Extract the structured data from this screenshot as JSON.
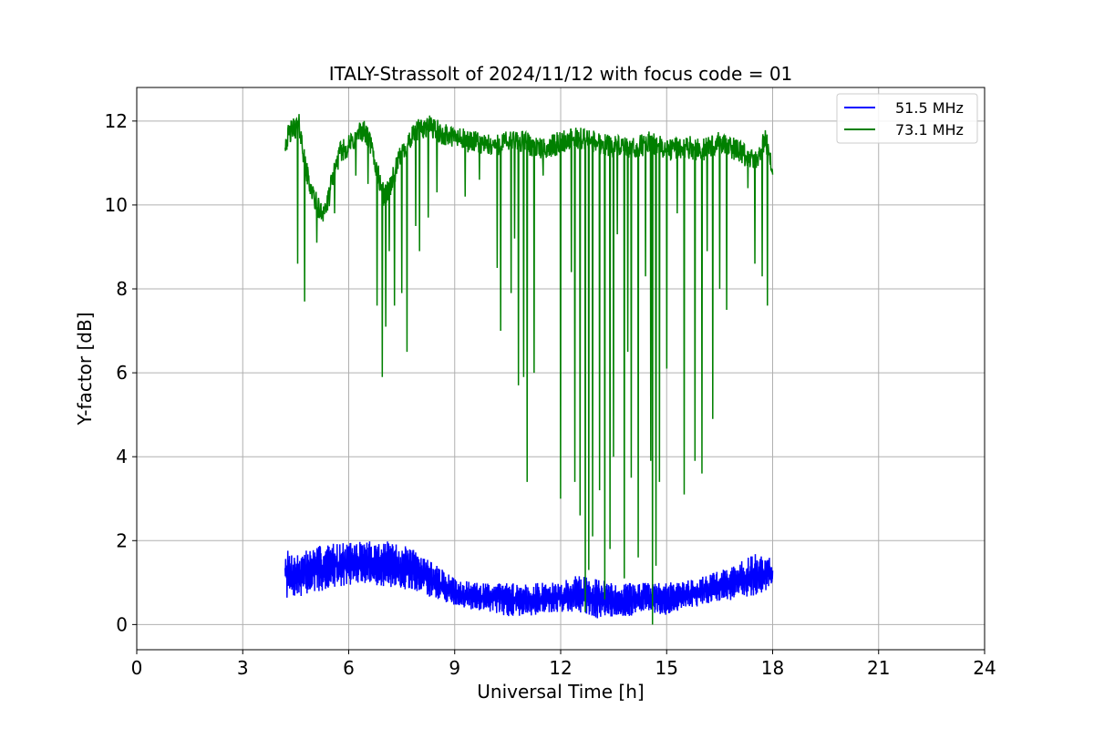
{
  "chart_data": {
    "type": "line",
    "title": "ITALY-Strassolt of 2024/11/12 with focus code = 01",
    "xlabel": "Universal Time [h]",
    "ylabel": "Y-factor [dB]",
    "xlim": [
      0,
      24
    ],
    "ylim": [
      -0.6,
      12.8
    ],
    "xticks": [
      0,
      3,
      6,
      9,
      12,
      15,
      18,
      21,
      24
    ],
    "yticks": [
      0,
      2,
      4,
      6,
      8,
      10,
      12
    ],
    "grid": true,
    "legend_position": "top-right",
    "series": [
      {
        "name": "51.5 MHz",
        "color": "#0000ff",
        "x": [
          4.2,
          4.5,
          5.0,
          5.5,
          6.0,
          6.5,
          7.0,
          7.5,
          8.0,
          8.5,
          9.0,
          9.5,
          10.0,
          10.5,
          11.0,
          11.5,
          12.0,
          12.5,
          13.0,
          13.5,
          14.0,
          14.5,
          15.0,
          15.5,
          16.0,
          16.5,
          17.0,
          17.5,
          18.0
        ],
        "y_mid": [
          1.2,
          1.15,
          1.25,
          1.4,
          1.45,
          1.45,
          1.4,
          1.35,
          1.25,
          1.0,
          0.75,
          0.7,
          0.7,
          0.7,
          0.65,
          0.65,
          0.65,
          0.75,
          0.75,
          0.65,
          0.65,
          0.7,
          0.7,
          0.75,
          0.85,
          0.9,
          1.0,
          1.15,
          1.25
        ],
        "y_max": [
          1.8,
          1.7,
          1.85,
          1.95,
          1.95,
          2.0,
          2.0,
          1.9,
          1.75,
          1.4,
          1.1,
          1.0,
          1.0,
          1.0,
          1.0,
          1.0,
          1.0,
          1.2,
          1.1,
          1.0,
          1.0,
          1.0,
          1.0,
          1.05,
          1.15,
          1.3,
          1.45,
          1.7,
          1.6
        ],
        "y_min": [
          0.6,
          0.65,
          0.75,
          0.85,
          0.95,
          0.95,
          0.9,
          0.85,
          0.75,
          0.6,
          0.45,
          0.35,
          0.3,
          0.2,
          0.2,
          0.25,
          0.3,
          0.3,
          0.15,
          0.05,
          0.2,
          0.3,
          0.2,
          0.35,
          0.45,
          0.55,
          0.6,
          0.7,
          0.85
        ]
      },
      {
        "name": "73.1 MHz",
        "color": "#008000",
        "x": [
          4.2,
          4.4,
          4.6,
          4.8,
          5.0,
          5.2,
          5.4,
          5.6,
          5.8,
          6.0,
          6.2,
          6.4,
          6.6,
          6.8,
          7.0,
          7.2,
          7.4,
          7.6,
          7.8,
          8.0,
          8.3,
          8.6,
          9.0,
          9.5,
          10.0,
          10.5,
          11.0,
          11.5,
          12.0,
          12.5,
          13.0,
          13.5,
          14.0,
          14.5,
          15.0,
          15.5,
          16.0,
          16.5,
          17.0,
          17.5,
          17.8,
          18.0
        ],
        "y": [
          11.5,
          11.8,
          11.9,
          10.8,
          10.2,
          9.8,
          10.0,
          10.9,
          11.3,
          11.4,
          11.6,
          11.8,
          11.5,
          10.8,
          10.2,
          10.5,
          11.0,
          11.4,
          11.6,
          11.8,
          11.9,
          11.7,
          11.6,
          11.5,
          11.4,
          11.5,
          11.5,
          11.3,
          11.5,
          11.6,
          11.5,
          11.4,
          11.3,
          11.5,
          11.3,
          11.4,
          11.3,
          11.5,
          11.3,
          11.0,
          11.6,
          10.8
        ],
        "spikes": [
          [
            4.55,
            8.6
          ],
          [
            4.75,
            7.7
          ],
          [
            5.1,
            9.1
          ],
          [
            5.6,
            9.8
          ],
          [
            6.2,
            10.7
          ],
          [
            6.55,
            10.5
          ],
          [
            6.8,
            7.6
          ],
          [
            6.95,
            5.9
          ],
          [
            7.05,
            7.1
          ],
          [
            7.15,
            8.9
          ],
          [
            7.3,
            7.6
          ],
          [
            7.5,
            7.9
          ],
          [
            7.65,
            6.5
          ],
          [
            7.9,
            9.5
          ],
          [
            8.0,
            8.9
          ],
          [
            8.25,
            9.7
          ],
          [
            8.5,
            10.3
          ],
          [
            9.3,
            10.2
          ],
          [
            9.7,
            10.6
          ],
          [
            10.2,
            8.5
          ],
          [
            10.3,
            7.0
          ],
          [
            10.6,
            7.9
          ],
          [
            10.7,
            9.2
          ],
          [
            10.8,
            5.7
          ],
          [
            10.95,
            5.9
          ],
          [
            11.05,
            3.4
          ],
          [
            11.25,
            6.0
          ],
          [
            11.5,
            10.7
          ],
          [
            12.0,
            3.0
          ],
          [
            12.3,
            8.4
          ],
          [
            12.4,
            3.4
          ],
          [
            12.55,
            2.6
          ],
          [
            12.7,
            0.3
          ],
          [
            12.8,
            1.3
          ],
          [
            12.9,
            2.1
          ],
          [
            13.1,
            3.2
          ],
          [
            13.25,
            0.6
          ],
          [
            13.4,
            1.8
          ],
          [
            13.5,
            4.0
          ],
          [
            13.6,
            9.3
          ],
          [
            13.8,
            1.1
          ],
          [
            13.9,
            6.5
          ],
          [
            14.0,
            3.5
          ],
          [
            14.2,
            1.6
          ],
          [
            14.4,
            8.3
          ],
          [
            14.55,
            3.9
          ],
          [
            14.6,
            0.0
          ],
          [
            14.7,
            1.4
          ],
          [
            14.8,
            3.4
          ],
          [
            15.0,
            6.1
          ],
          [
            15.3,
            9.8
          ],
          [
            15.5,
            3.1
          ],
          [
            15.8,
            3.9
          ],
          [
            16.0,
            3.6
          ],
          [
            16.15,
            8.9
          ],
          [
            16.3,
            4.9
          ],
          [
            16.5,
            8.0
          ],
          [
            16.7,
            7.5
          ],
          [
            17.3,
            10.4
          ],
          [
            17.5,
            8.6
          ],
          [
            17.7,
            8.3
          ],
          [
            17.85,
            7.6
          ]
        ]
      }
    ]
  }
}
